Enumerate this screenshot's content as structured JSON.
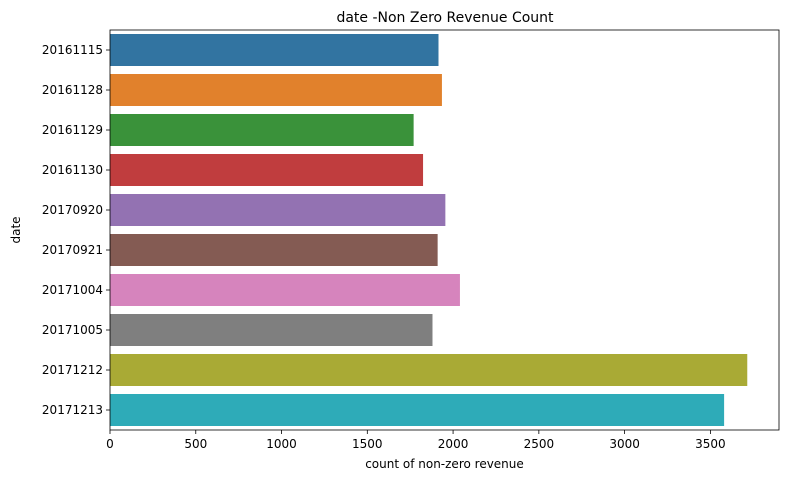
{
  "chart_data": {
    "type": "bar",
    "orientation": "horizontal",
    "title": "date -Non Zero Revenue Count",
    "xlabel": "count of non-zero revenue",
    "ylabel": "date",
    "categories": [
      "20161115",
      "20161128",
      "20161129",
      "20161130",
      "20170920",
      "20170921",
      "20171004",
      "20171005",
      "20171212",
      "20171213"
    ],
    "values": [
      1915,
      1935,
      1770,
      1825,
      1955,
      1910,
      2040,
      1880,
      3715,
      3580
    ],
    "colors": [
      "#3274a1",
      "#e1812c",
      "#3a923a",
      "#c03d3e",
      "#9372b2",
      "#845b53",
      "#d684bd",
      "#7f7f7f",
      "#a9aa35",
      "#2eabb8"
    ],
    "xlim": [
      0,
      3900
    ],
    "xticks": [
      0,
      500,
      1000,
      1500,
      2000,
      2500,
      3000,
      3500
    ],
    "grid": false,
    "legend": "none"
  }
}
